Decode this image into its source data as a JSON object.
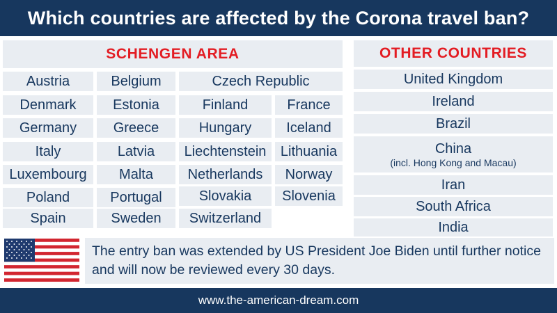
{
  "header": {
    "title": "Which countries are affected by the Corona travel ban?"
  },
  "schengen": {
    "heading": "SCHENGEN AREA",
    "countries": [
      "Austria",
      "Belgium",
      "Czech Republic",
      "Denmark",
      "Estonia",
      "Finland",
      "France",
      "Germany",
      "Greece",
      "Hungary",
      "Iceland",
      "Italy",
      "Latvia",
      "Liechtenstein",
      "Lithuania",
      "Luxembourg",
      "Malta",
      "Netherlands",
      "Norway",
      "Poland",
      "Portugal",
      "Slovakia",
      "Slovenia",
      "Spain",
      "Sweden",
      "Switzerland"
    ]
  },
  "other": {
    "heading": "OTHER COUNTRIES",
    "countries": [
      "United Kingdom",
      "Ireland",
      "Brazil",
      "China",
      "Iran",
      "South Africa",
      "India"
    ],
    "china_note": "(incl. Hong Kong and Macau)"
  },
  "notice": {
    "text": "The entry ban was extended by US President Joe Biden until further notice and will now be reviewed every 30 days.",
    "flag_icon": "us-flag-icon"
  },
  "footer": {
    "website": "www.the-american-dream.com"
  },
  "colors": {
    "navy": "#17375e",
    "red": "#e31c23",
    "panel": "#e9edf2"
  }
}
